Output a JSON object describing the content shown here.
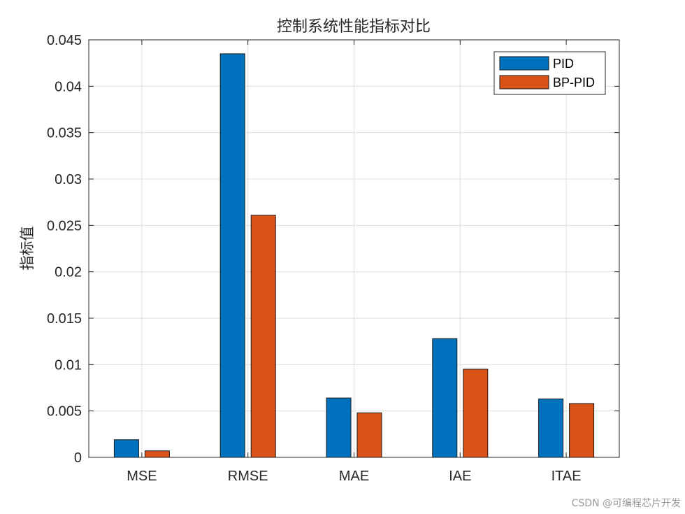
{
  "chart_data": {
    "type": "bar",
    "title": "控制系统性能指标对比",
    "xlabel": "",
    "ylabel": "指标值",
    "categories": [
      "MSE",
      "RMSE",
      "MAE",
      "IAE",
      "ITAE"
    ],
    "series": [
      {
        "name": "PID",
        "color": "#0072BD",
        "values": [
          0.0019,
          0.0435,
          0.0064,
          0.0128,
          0.0063
        ]
      },
      {
        "name": "BP-PID",
        "color": "#D95319",
        "values": [
          0.0007,
          0.0261,
          0.0048,
          0.0095,
          0.0058
        ]
      }
    ],
    "ylim": [
      0,
      0.045
    ],
    "yticks": [
      "0",
      "0.005",
      "0.01",
      "0.015",
      "0.02",
      "0.025",
      "0.03",
      "0.035",
      "0.04",
      "0.045"
    ],
    "grid": true,
    "legend_position": "top-right"
  },
  "watermark": "CSDN @可编程芯片开发"
}
